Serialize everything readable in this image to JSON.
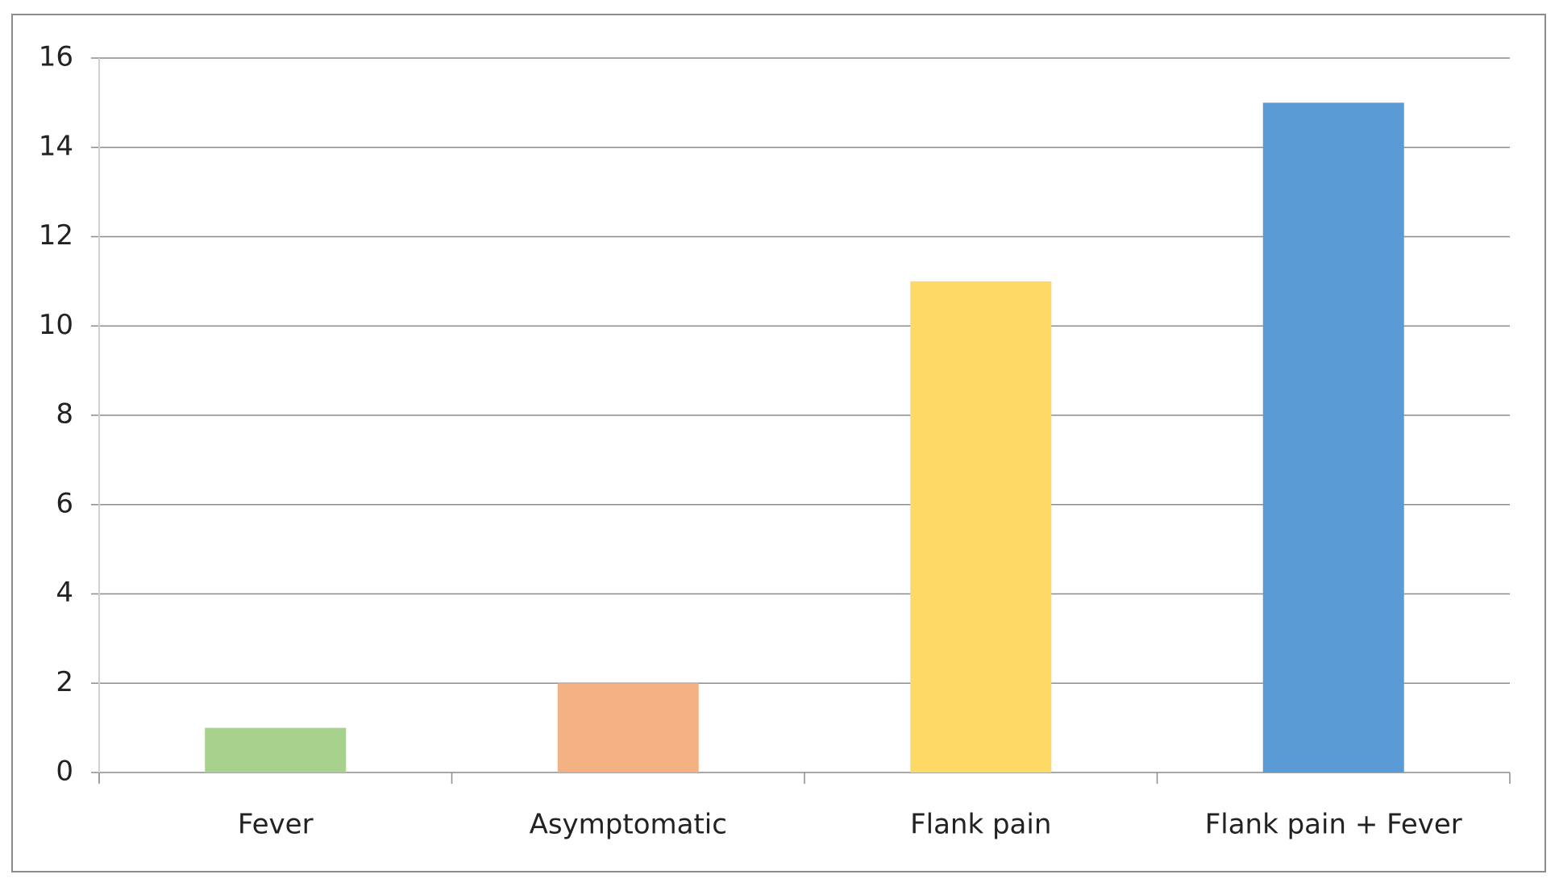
{
  "chart_data": {
    "type": "bar",
    "categories": [
      "Fever",
      "Asymptomatic",
      "Flank pain",
      "Flank pain + Fever"
    ],
    "values": [
      1,
      2,
      11,
      15
    ],
    "colors": [
      "#a9d18e",
      "#f4b183",
      "#ffd966",
      "#5b9bd5"
    ],
    "ylim": [
      0,
      16
    ],
    "yticks": [
      0,
      2,
      4,
      6,
      8,
      10,
      12,
      14,
      16
    ],
    "grid": true
  }
}
